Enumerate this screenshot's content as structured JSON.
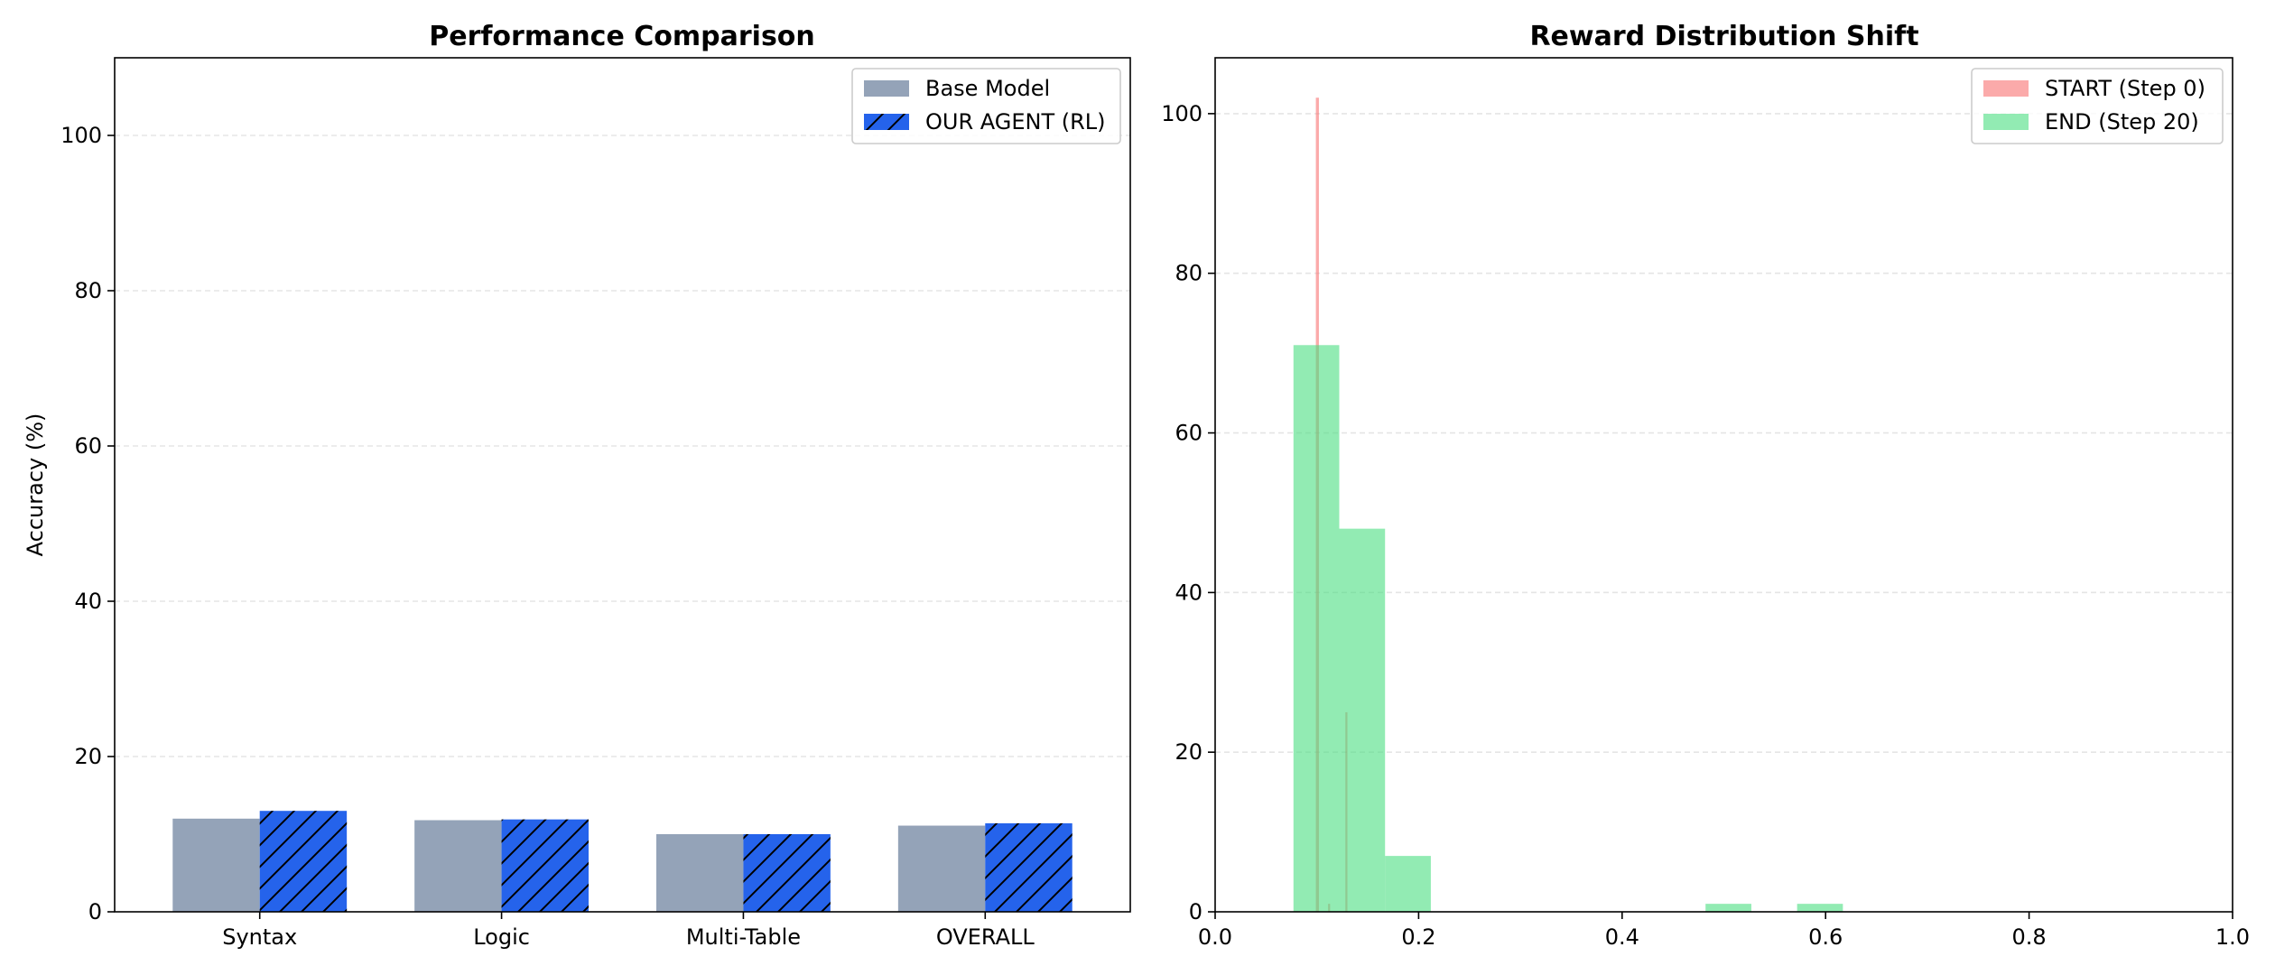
{
  "chart_data": [
    {
      "type": "bar",
      "title": "Performance Comparison",
      "xlabel": "",
      "ylabel": "Accuracy (%)",
      "ylim": [
        0,
        110
      ],
      "yticks": [
        0,
        20,
        40,
        60,
        80,
        100
      ],
      "grid": "y-dashed",
      "legend_position": "top-right",
      "categories": [
        "Syntax",
        "Logic",
        "Multi-Table",
        "OVERALL"
      ],
      "series": [
        {
          "name": "Base Model",
          "values": [
            12.0,
            11.8,
            10.0,
            11.1
          ],
          "color": "#94a3b8",
          "hatch": "none"
        },
        {
          "name": "OUR AGENT (RL)",
          "values": [
            13.0,
            11.9,
            10.0,
            11.4
          ],
          "color": "#2563eb",
          "hatch": "diagonal"
        }
      ]
    },
    {
      "type": "histogram",
      "title": "Reward Distribution Shift",
      "xlabel": "",
      "ylabel": "",
      "xlim": [
        0,
        1
      ],
      "ylim": [
        0,
        107
      ],
      "xticks": [
        0.0,
        0.2,
        0.4,
        0.6,
        0.8,
        1.0
      ],
      "xtick_labels": [
        "0.0",
        "0.2",
        "0.4",
        "0.6",
        "0.8",
        "1.0"
      ],
      "yticks": [
        0,
        20,
        40,
        60,
        80,
        100
      ],
      "grid": "y-dashed",
      "legend_position": "top-right",
      "series": [
        {
          "name": "START (Step 0)",
          "color": "#f87171",
          "bins": [
            {
              "x0": 0.099,
              "x1": 0.102,
              "count": 102
            },
            {
              "x0": 0.111,
              "x1": 0.113,
              "count": 1
            },
            {
              "x0": 0.128,
              "x1": 0.13,
              "count": 25
            }
          ]
        },
        {
          "name": "END (Step 20)",
          "color": "#4ade80",
          "bins": [
            {
              "x0": 0.077,
              "x1": 0.122,
              "count": 71
            },
            {
              "x0": 0.122,
              "x1": 0.167,
              "count": 48
            },
            {
              "x0": 0.167,
              "x1": 0.212,
              "count": 7
            },
            {
              "x0": 0.482,
              "x1": 0.527,
              "count": 1
            },
            {
              "x0": 0.572,
              "x1": 0.617,
              "count": 1
            }
          ]
        }
      ]
    }
  ]
}
